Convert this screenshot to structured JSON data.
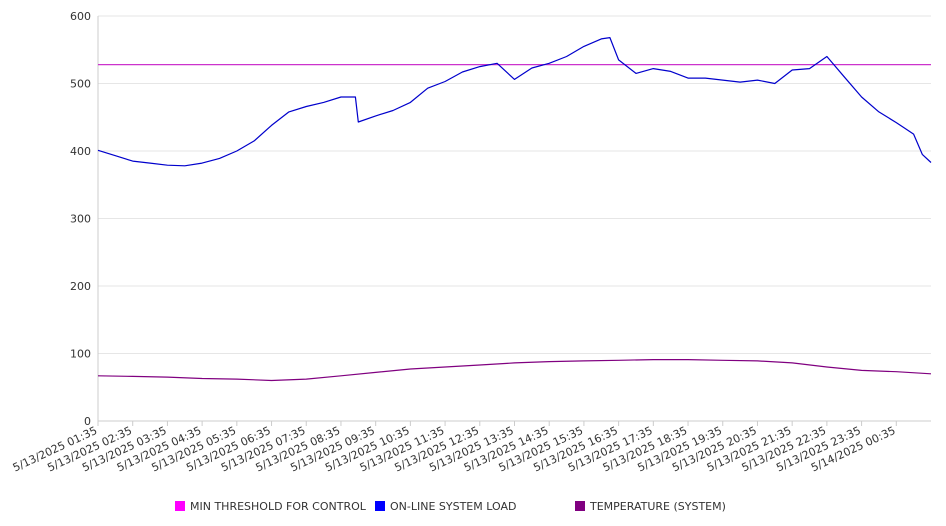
{
  "chart_data": {
    "type": "line",
    "title": "",
    "xlabel": "",
    "ylabel": "",
    "ylim": [
      0,
      600
    ],
    "y_ticks": [
      "0",
      "100",
      "200",
      "300",
      "400",
      "500",
      "600"
    ],
    "x_tick_labels": [
      "5/13/2025 01:35",
      "5/13/2025 02:35",
      "5/13/2025 03:35",
      "5/13/2025 04:35",
      "5/13/2025 05:35",
      "5/13/2025 06:35",
      "5/13/2025 07:35",
      "5/13/2025 08:35",
      "5/13/2025 09:35",
      "5/13/2025 10:35",
      "5/13/2025 11:35",
      "5/13/2025 12:35",
      "5/13/2025 13:35",
      "5/13/2025 14:35",
      "5/13/2025 15:35",
      "5/13/2025 16:35",
      "5/13/2025 17:35",
      "5/13/2025 18:35",
      "5/13/2025 19:35",
      "5/13/2025 20:35",
      "5/13/2025 21:35",
      "5/13/2025 22:35",
      "5/13/2025 23:35",
      "5/14/2025 00:35"
    ],
    "grid": "horizontal",
    "legend_position": "bottom",
    "series": [
      {
        "name": "MIN THRESHOLD FOR CONTROL",
        "color": "#cc33cc",
        "x": [
          "5/13/2025 01:35",
          "5/14/2025 01:35"
        ],
        "values": [
          528,
          528
        ]
      },
      {
        "name": "ON-LINE SYSTEM LOAD",
        "color": "#0000cc",
        "x": [
          "5/13/2025 01:35",
          "5/13/2025 02:05",
          "5/13/2025 02:35",
          "5/13/2025 03:05",
          "5/13/2025 03:35",
          "5/13/2025 04:05",
          "5/13/2025 04:35",
          "5/13/2025 05:05",
          "5/13/2025 05:35",
          "5/13/2025 06:05",
          "5/13/2025 06:35",
          "5/13/2025 07:05",
          "5/13/2025 07:35",
          "5/13/2025 08:05",
          "5/13/2025 08:35",
          "5/13/2025 09:00",
          "5/13/2025 09:05",
          "5/13/2025 09:35",
          "5/13/2025 10:05",
          "5/13/2025 10:35",
          "5/13/2025 11:05",
          "5/13/2025 11:35",
          "5/13/2025 12:05",
          "5/13/2025 12:35",
          "5/13/2025 13:05",
          "5/13/2025 13:35",
          "5/13/2025 14:05",
          "5/13/2025 14:35",
          "5/13/2025 15:05",
          "5/13/2025 15:35",
          "5/13/2025 16:05",
          "5/13/2025 16:20",
          "5/13/2025 16:35",
          "5/13/2025 17:05",
          "5/13/2025 17:35",
          "5/13/2025 18:05",
          "5/13/2025 18:35",
          "5/13/2025 19:05",
          "5/13/2025 19:35",
          "5/13/2025 20:05",
          "5/13/2025 20:35",
          "5/13/2025 21:05",
          "5/13/2025 21:35",
          "5/13/2025 22:05",
          "5/13/2025 22:35",
          "5/13/2025 23:05",
          "5/13/2025 23:35",
          "5/14/2025 00:05",
          "5/14/2025 00:35",
          "5/14/2025 01:05",
          "5/14/2025 01:20",
          "5/14/2025 01:35"
        ],
        "values": [
          401,
          393,
          385,
          382,
          379,
          378,
          382,
          389,
          400,
          415,
          438,
          458,
          466,
          472,
          480,
          480,
          443,
          452,
          460,
          472,
          493,
          503,
          517,
          525,
          530,
          506,
          523,
          530,
          540,
          555,
          566,
          568,
          535,
          515,
          522,
          518,
          508,
          508,
          505,
          502,
          505,
          500,
          520,
          522,
          540,
          510,
          480,
          458,
          442,
          425,
          395,
          383
        ]
      },
      {
        "name": "TEMPERATURE (SYSTEM)",
        "color": "#800080",
        "x": [
          "5/13/2025 01:35",
          "5/13/2025 02:35",
          "5/13/2025 03:35",
          "5/13/2025 04:35",
          "5/13/2025 05:35",
          "5/13/2025 06:35",
          "5/13/2025 07:35",
          "5/13/2025 08:35",
          "5/13/2025 09:35",
          "5/13/2025 10:35",
          "5/13/2025 11:35",
          "5/13/2025 12:35",
          "5/13/2025 13:35",
          "5/13/2025 14:35",
          "5/13/2025 15:35",
          "5/13/2025 16:35",
          "5/13/2025 17:35",
          "5/13/2025 18:35",
          "5/13/2025 19:35",
          "5/13/2025 20:35",
          "5/13/2025 21:35",
          "5/13/2025 22:35",
          "5/13/2025 23:35",
          "5/14/2025 00:35",
          "5/14/2025 01:35"
        ],
        "values": [
          67,
          66,
          65,
          63,
          62,
          60,
          62,
          67,
          72,
          77,
          80,
          83,
          86,
          88,
          89,
          90,
          91,
          91,
          90,
          89,
          86,
          80,
          75,
          73,
          70
        ]
      }
    ]
  }
}
